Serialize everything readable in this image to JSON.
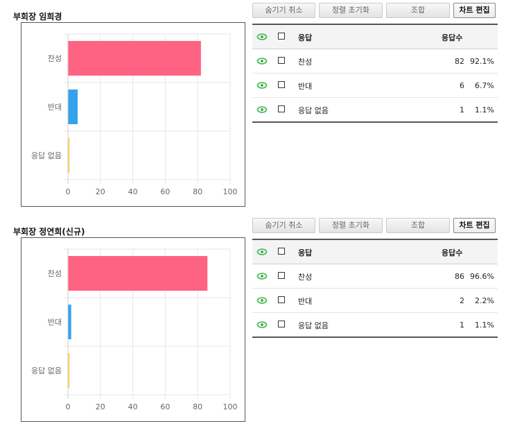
{
  "toolbar": {
    "hide_cancel_label": "숨기기 취소",
    "sort_reset_label": "정렬 초기화",
    "combine_label": "조합",
    "chart_edit_label": "차트 편집"
  },
  "table_header": {
    "response": "응답",
    "count": "응답수"
  },
  "colors": {
    "yes": "#ff6384",
    "no": "#36a2eb",
    "none": "#ffce56",
    "eye": "#3cb44b"
  },
  "sections": [
    {
      "title": "부회장 임희경",
      "chart_data": {
        "type": "bar",
        "orientation": "horizontal",
        "categories": [
          "찬성",
          "반대",
          "응답 없음"
        ],
        "values": [
          82,
          6,
          1
        ],
        "xlim": [
          0,
          100
        ],
        "xticks": [
          "0",
          "20",
          "40",
          "60",
          "80",
          "100"
        ],
        "grid": true
      },
      "rows": [
        {
          "label": "찬성",
          "count": "82",
          "pct": "92.1%"
        },
        {
          "label": "반대",
          "count": "6",
          "pct": "6.7%"
        },
        {
          "label": "응답 없음",
          "count": "1",
          "pct": "1.1%"
        }
      ]
    },
    {
      "title": "부회장 정연희(신규)",
      "chart_data": {
        "type": "bar",
        "orientation": "horizontal",
        "categories": [
          "찬성",
          "반대",
          "응답 없음"
        ],
        "values": [
          86,
          2,
          1
        ],
        "xlim": [
          0,
          100
        ],
        "xticks": [
          "0",
          "20",
          "40",
          "60",
          "80",
          "100"
        ],
        "grid": true
      },
      "rows": [
        {
          "label": "찬성",
          "count": "86",
          "pct": "96.6%"
        },
        {
          "label": "반대",
          "count": "2",
          "pct": "2.2%"
        },
        {
          "label": "응답 없음",
          "count": "1",
          "pct": "1.1%"
        }
      ]
    }
  ]
}
